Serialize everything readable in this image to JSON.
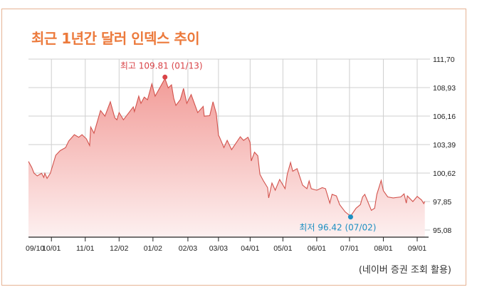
{
  "chart_data": {
    "type": "area",
    "title": "최근 1년간 달러 인덱스 추이",
    "source": "(네이버 증권 조회 활용)",
    "xlabel": "",
    "ylabel": "",
    "ylim": [
      95.08,
      111.7
    ],
    "y_ticks": [
      "111.70",
      "108.93",
      "106.16",
      "103.39",
      "100.62",
      "97.85",
      "95.08"
    ],
    "x_ticks": [
      "09/10",
      "10/01",
      "11/01",
      "12/02",
      "01/02",
      "02/03",
      "03/03",
      "04/01",
      "05/01",
      "06/01",
      "07/01",
      "08/01",
      "09/01"
    ],
    "grid": true,
    "colors": {
      "title": "#ec7a3c",
      "line": "#d2524c",
      "fill_top": "#f29c98",
      "fill_bottom": "#fdf0f0",
      "high": "#d94448",
      "low": "#1d8fc2",
      "border": "#e6b394"
    },
    "annotations": {
      "high": {
        "label": "최고 109.81 (01/13)",
        "date": "01/13",
        "value": 109.81
      },
      "low": {
        "label": "최저 96.42 (07/02)",
        "date": "07/02",
        "value": 96.42
      }
    },
    "series": [
      {
        "points": [
          [
            "09/10",
            101.75
          ],
          [
            "09/13",
            101.17
          ],
          [
            "09/15",
            100.62
          ],
          [
            "09/18",
            100.34
          ],
          [
            "09/22",
            100.6
          ],
          [
            "09/24",
            100.2
          ],
          [
            "09/25",
            100.6
          ],
          [
            "09/27",
            100.1
          ],
          [
            "09/30",
            100.6
          ],
          [
            "10/05",
            102.35
          ],
          [
            "10/09",
            102.8
          ],
          [
            "10/14",
            103.1
          ],
          [
            "10/17",
            103.75
          ],
          [
            "10/22",
            104.35
          ],
          [
            "10/26",
            104.1
          ],
          [
            "10/29",
            104.35
          ],
          [
            "11/02",
            103.95
          ],
          [
            "11/05",
            103.3
          ],
          [
            "11/06",
            105.1
          ],
          [
            "11/09",
            104.5
          ],
          [
            "11/15",
            106.7
          ],
          [
            "11/19",
            106.15
          ],
          [
            "11/24",
            107.55
          ],
          [
            "11/28",
            106.0
          ],
          [
            "11/30",
            105.8
          ],
          [
            "12/02",
            106.5
          ],
          [
            "12/06",
            105.8
          ],
          [
            "12/15",
            107.05
          ],
          [
            "12/16",
            106.6
          ],
          [
            "12/20",
            108.1
          ],
          [
            "12/22",
            107.4
          ],
          [
            "12/25",
            108.0
          ],
          [
            "12/28",
            107.75
          ],
          [
            "01/01",
            109.3
          ],
          [
            "01/04",
            108.1
          ],
          [
            "01/13",
            109.81
          ],
          [
            "01/16",
            108.9
          ],
          [
            "01/19",
            109.2
          ],
          [
            "01/21",
            107.9
          ],
          [
            "01/23",
            107.2
          ],
          [
            "01/27",
            107.75
          ],
          [
            "01/30",
            108.85
          ],
          [
            "02/02",
            107.4
          ],
          [
            "02/06",
            108.25
          ],
          [
            "02/12",
            106.5
          ],
          [
            "02/17",
            107.1
          ],
          [
            "02/18",
            106.15
          ],
          [
            "02/23",
            106.2
          ],
          [
            "02/26",
            107.55
          ],
          [
            "03/01",
            106.4
          ],
          [
            "03/03",
            104.3
          ],
          [
            "03/04",
            104.1
          ],
          [
            "03/08",
            103.1
          ],
          [
            "03/11",
            103.8
          ],
          [
            "03/15",
            102.9
          ],
          [
            "03/23",
            104.15
          ],
          [
            "03/26",
            103.8
          ],
          [
            "03/30",
            104.1
          ],
          [
            "04/01",
            103.6
          ],
          [
            "04/02",
            101.8
          ],
          [
            "04/05",
            102.65
          ],
          [
            "04/08",
            102.3
          ],
          [
            "04/10",
            100.5
          ],
          [
            "04/13",
            99.9
          ],
          [
            "04/17",
            99.2
          ],
          [
            "04/18",
            98.2
          ],
          [
            "04/21",
            99.65
          ],
          [
            "04/24",
            98.95
          ],
          [
            "04/28",
            100.0
          ],
          [
            "05/03",
            99.1
          ],
          [
            "05/05",
            100.5
          ],
          [
            "05/08",
            101.65
          ],
          [
            "05/10",
            100.8
          ],
          [
            "05/14",
            101.05
          ],
          [
            "05/19",
            99.45
          ],
          [
            "05/23",
            99.1
          ],
          [
            "05/25",
            99.85
          ],
          [
            "05/27",
            99.1
          ],
          [
            "06/01",
            98.95
          ],
          [
            "06/06",
            99.2
          ],
          [
            "06/09",
            99.1
          ],
          [
            "06/13",
            97.7
          ],
          [
            "06/15",
            98.55
          ],
          [
            "06/19",
            98.4
          ],
          [
            "06/22",
            97.55
          ],
          [
            "06/27",
            96.85
          ],
          [
            "07/02",
            96.42
          ],
          [
            "07/07",
            97.2
          ],
          [
            "07/11",
            97.55
          ],
          [
            "07/13",
            98.3
          ],
          [
            "07/15",
            98.55
          ],
          [
            "07/21",
            97.0
          ],
          [
            "07/24",
            97.2
          ],
          [
            "07/26",
            98.55
          ],
          [
            "07/30",
            99.9
          ],
          [
            "08/01",
            98.9
          ],
          [
            "08/05",
            98.3
          ],
          [
            "08/10",
            98.2
          ],
          [
            "08/17",
            98.3
          ],
          [
            "08/20",
            98.6
          ],
          [
            "08/22",
            97.7
          ],
          [
            "08/23",
            98.4
          ],
          [
            "08/28",
            97.85
          ],
          [
            "09/01",
            98.35
          ],
          [
            "09/05",
            98.0
          ],
          [
            "09/07",
            97.65
          ],
          [
            "09/08",
            97.85
          ]
        ]
      }
    ]
  }
}
